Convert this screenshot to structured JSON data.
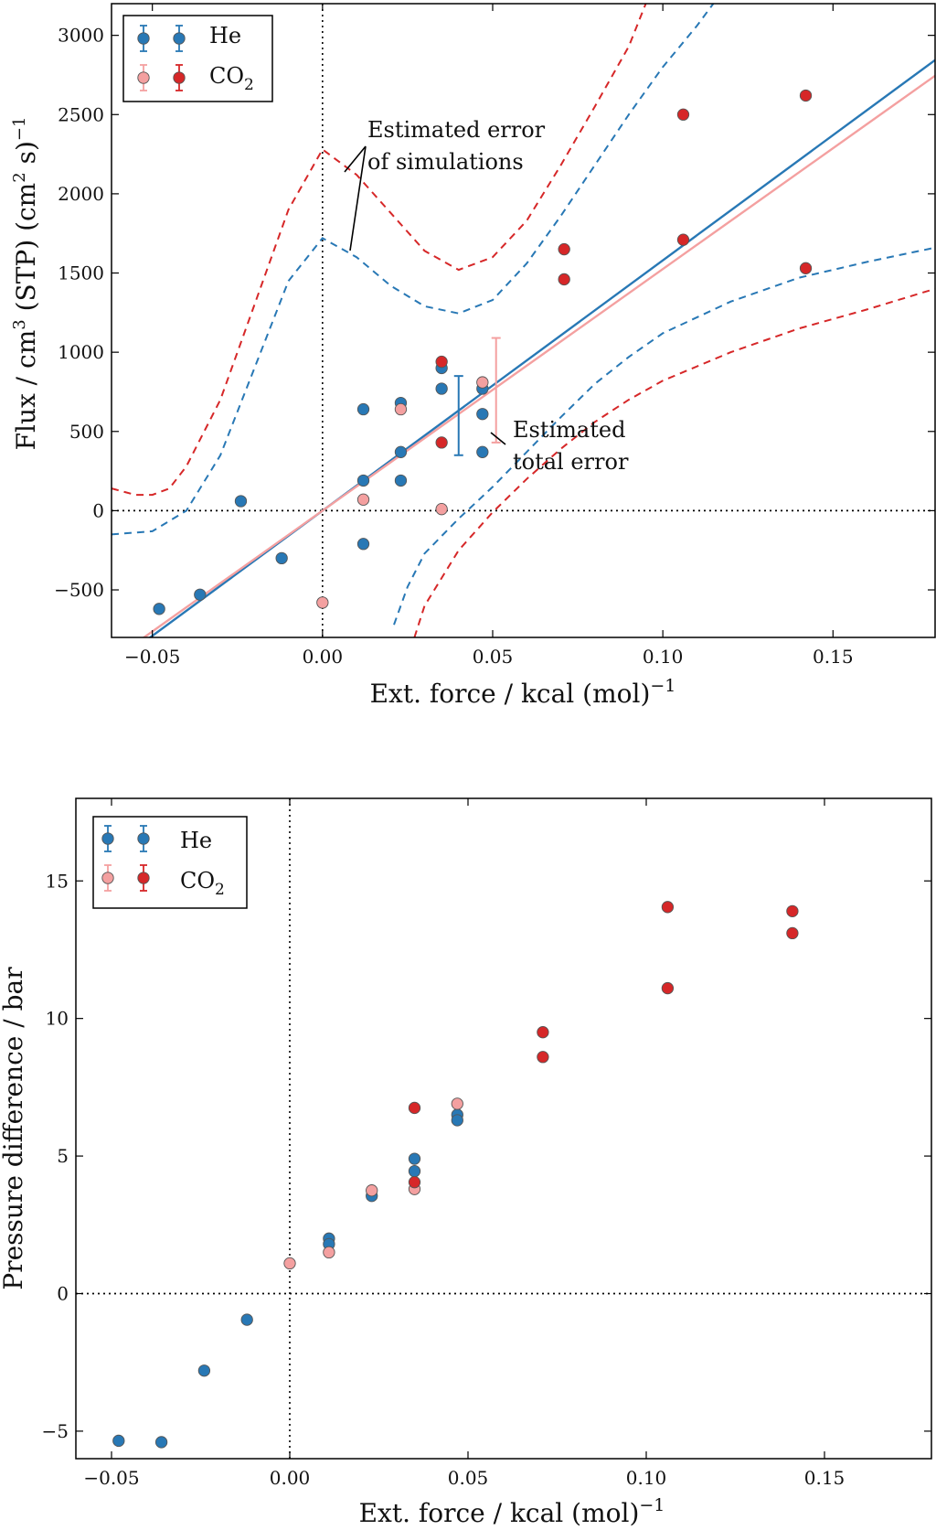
{
  "chart_data": [
    {
      "type": "scatter",
      "name": "flux",
      "xlabel": "Ext. force / kcal (mol)",
      "xlabel_sup": "−1",
      "ylabel_parts": [
        "Flux / cm",
        "3",
        " (STP) (cm",
        "2",
        " s)",
        "−1"
      ],
      "xlim": [
        -0.062,
        0.18
      ],
      "ylim": [
        -800,
        3200
      ],
      "xticks": [
        -0.05,
        0.0,
        0.05,
        0.1,
        0.15
      ],
      "xtick_labels": [
        "−0.05",
        "0.00",
        "0.05",
        "0.10",
        "0.15"
      ],
      "yticks": [
        -500,
        0,
        500,
        1000,
        1500,
        2000,
        2500,
        3000
      ],
      "ytick_labels": [
        "−500",
        "0",
        "500",
        "1000",
        "1500",
        "2000",
        "2500",
        "3000"
      ],
      "legend": {
        "position": "top-left",
        "entries": [
          {
            "label": "He",
            "colors": [
              "#2878b5",
              "#2878b5"
            ]
          },
          {
            "label": "CO",
            "sub": "2",
            "colors": [
              "#f4a0a0",
              "#d62728"
            ]
          }
        ]
      },
      "series": [
        {
          "name": "He",
          "color": "#2878b5",
          "points": [
            [
              -0.048,
              -620
            ],
            [
              -0.036,
              -530
            ],
            [
              -0.024,
              60
            ],
            [
              -0.012,
              -300
            ],
            [
              0.012,
              640
            ],
            [
              0.012,
              190
            ],
            [
              0.012,
              -210
            ],
            [
              0.023,
              680
            ],
            [
              0.023,
              370
            ],
            [
              0.023,
              190
            ],
            [
              0.035,
              900
            ],
            [
              0.035,
              770
            ],
            [
              0.047,
              770
            ],
            [
              0.047,
              610
            ],
            [
              0.047,
              370
            ]
          ]
        },
        {
          "name": "CO2 (light)",
          "color": "#f4a0a0",
          "points": [
            [
              0.0,
              -580
            ],
            [
              0.012,
              70
            ],
            [
              0.023,
              640
            ],
            [
              0.035,
              10
            ],
            [
              0.047,
              810
            ]
          ]
        },
        {
          "name": "CO2",
          "color": "#d62728",
          "points": [
            [
              0.035,
              940
            ],
            [
              0.035,
              430
            ],
            [
              0.071,
              1650
            ],
            [
              0.071,
              1460
            ],
            [
              0.106,
              2500
            ],
            [
              0.106,
              1710
            ],
            [
              0.142,
              2620
            ],
            [
              0.142,
              1530
            ]
          ]
        }
      ],
      "fits": [
        {
          "name": "He fit",
          "color": "#2878b5",
          "slope": 15800
        },
        {
          "name": "CO2 fit",
          "color": "#f4a0a0",
          "slope": 15250
        }
      ],
      "error_bands": [
        {
          "name": "He upper",
          "color": "#2878b5",
          "points": [
            [
              -0.062,
              -150
            ],
            [
              -0.05,
              -130
            ],
            [
              -0.04,
              0
            ],
            [
              -0.03,
              350
            ],
            [
              -0.02,
              900
            ],
            [
              -0.01,
              1450
            ],
            [
              0.0,
              1720
            ],
            [
              0.01,
              1600
            ],
            [
              0.02,
              1420
            ],
            [
              0.03,
              1290
            ],
            [
              0.04,
              1245
            ],
            [
              0.05,
              1330
            ],
            [
              0.06,
              1560
            ],
            [
              0.07,
              1860
            ],
            [
              0.08,
              2180
            ],
            [
              0.09,
              2500
            ],
            [
              0.1,
              2800
            ],
            [
              0.11,
              3060
            ],
            [
              0.12,
              3350
            ]
          ]
        },
        {
          "name": "He lower",
          "color": "#2878b5",
          "points": [
            [
              0.021,
              -720
            ],
            [
              0.025,
              -480
            ],
            [
              0.03,
              -270
            ],
            [
              0.04,
              -50
            ],
            [
              0.05,
              150
            ],
            [
              0.06,
              370
            ],
            [
              0.07,
              590
            ],
            [
              0.08,
              800
            ],
            [
              0.09,
              970
            ],
            [
              0.1,
              1120
            ],
            [
              0.12,
              1320
            ],
            [
              0.14,
              1470
            ],
            [
              0.16,
              1570
            ],
            [
              0.18,
              1660
            ]
          ]
        },
        {
          "name": "CO2 upper",
          "color": "#d62728",
          "points": [
            [
              -0.062,
              140
            ],
            [
              -0.055,
              100
            ],
            [
              -0.05,
              100
            ],
            [
              -0.045,
              140
            ],
            [
              -0.04,
              280
            ],
            [
              -0.03,
              700
            ],
            [
              -0.02,
              1300
            ],
            [
              -0.01,
              1900
            ],
            [
              0.0,
              2280
            ],
            [
              0.01,
              2120
            ],
            [
              0.02,
              1880
            ],
            [
              0.03,
              1640
            ],
            [
              0.04,
              1520
            ],
            [
              0.05,
              1600
            ],
            [
              0.06,
              1830
            ],
            [
              0.07,
              2180
            ],
            [
              0.08,
              2550
            ],
            [
              0.09,
              2930
            ],
            [
              0.095,
              3200
            ]
          ]
        },
        {
          "name": "CO2 lower",
          "color": "#d62728",
          "points": [
            [
              0.027,
              -800
            ],
            [
              0.03,
              -600
            ],
            [
              0.04,
              -250
            ],
            [
              0.05,
              -10
            ],
            [
              0.06,
              200
            ],
            [
              0.07,
              390
            ],
            [
              0.08,
              560
            ],
            [
              0.09,
              700
            ],
            [
              0.1,
              820
            ],
            [
              0.12,
              1000
            ],
            [
              0.14,
              1150
            ],
            [
              0.16,
              1270
            ],
            [
              0.18,
              1400
            ]
          ]
        }
      ],
      "error_bars": [
        {
          "x": 0.04,
          "center": 600,
          "half": 250,
          "color": "#2878b5"
        },
        {
          "x": 0.051,
          "center": 760,
          "half": 330,
          "color": "#f4a0a0"
        }
      ],
      "annotations": [
        {
          "lines": [
            "Estimated error",
            "of simulations"
          ]
        },
        {
          "lines": [
            "Estimated",
            "total error"
          ]
        }
      ]
    },
    {
      "type": "scatter",
      "name": "pressure",
      "xlabel": "Ext. force / kcal (mol)",
      "xlabel_sup": "−1",
      "ylabel": "Pressure difference / bar",
      "xlim": [
        -0.06,
        0.18
      ],
      "ylim": [
        -6,
        18
      ],
      "xticks": [
        -0.05,
        0.0,
        0.05,
        0.1,
        0.15
      ],
      "xtick_labels": [
        "−0.05",
        "0.00",
        "0.05",
        "0.10",
        "0.15"
      ],
      "yticks": [
        -5,
        0,
        5,
        10,
        15
      ],
      "ytick_labels": [
        "−5",
        "0",
        "5",
        "10",
        "15"
      ],
      "legend": {
        "position": "top-left",
        "entries": [
          {
            "label": "He",
            "colors": [
              "#2878b5",
              "#2878b5"
            ]
          },
          {
            "label": "CO",
            "sub": "2",
            "colors": [
              "#f4a0a0",
              "#d62728"
            ]
          }
        ]
      },
      "series": [
        {
          "name": "He",
          "color": "#2878b5",
          "points": [
            [
              -0.048,
              -5.35
            ],
            [
              -0.036,
              -5.4
            ],
            [
              -0.024,
              -2.8
            ],
            [
              -0.012,
              -0.95
            ],
            [
              0.011,
              2.0
            ],
            [
              0.011,
              1.8
            ],
            [
              0.023,
              3.55
            ],
            [
              0.035,
              4.9
            ],
            [
              0.035,
              4.45
            ],
            [
              0.047,
              6.5
            ],
            [
              0.047,
              6.3
            ]
          ]
        },
        {
          "name": "CO2 (light)",
          "color": "#f4a0a0",
          "points": [
            [
              0.0,
              1.1
            ],
            [
              0.011,
              1.5
            ],
            [
              0.023,
              3.75
            ],
            [
              0.035,
              3.8
            ],
            [
              0.047,
              6.9
            ]
          ]
        },
        {
          "name": "CO2",
          "color": "#d62728",
          "points": [
            [
              0.035,
              6.75
            ],
            [
              0.035,
              4.05
            ],
            [
              0.071,
              9.5
            ],
            [
              0.071,
              8.6
            ],
            [
              0.106,
              14.05
            ],
            [
              0.106,
              11.1
            ],
            [
              0.141,
              13.9
            ],
            [
              0.141,
              13.1
            ]
          ]
        }
      ]
    }
  ]
}
